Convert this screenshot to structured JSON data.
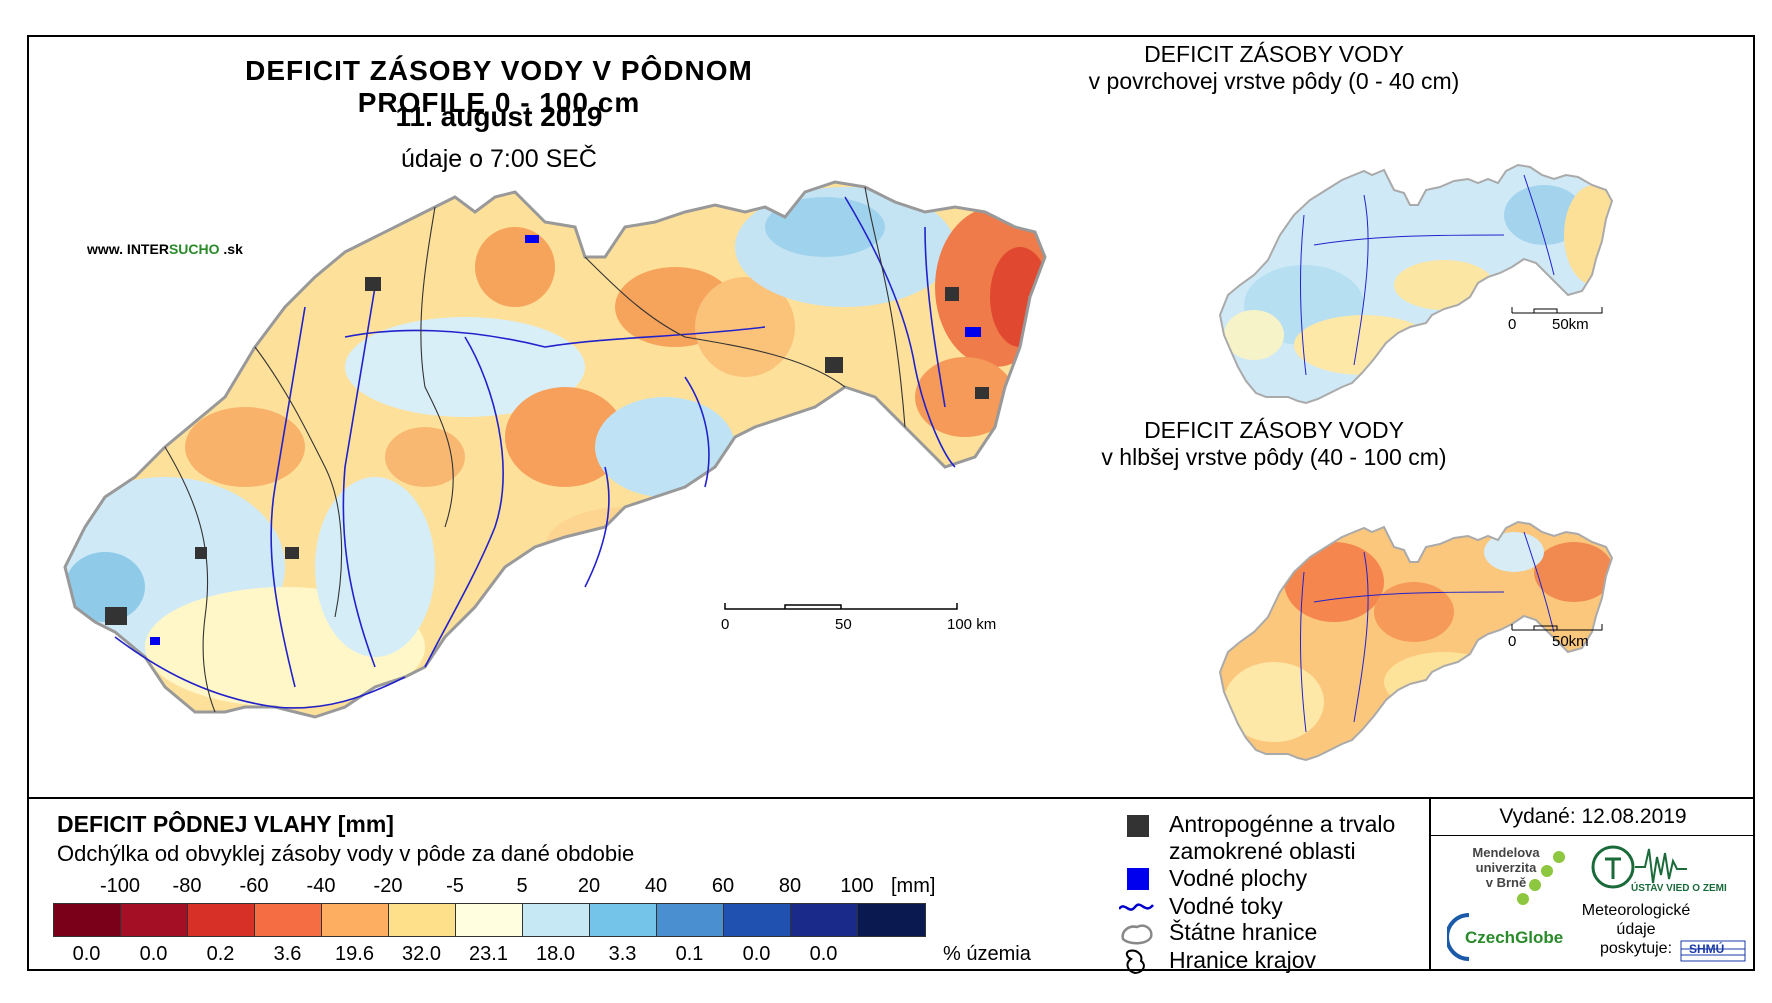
{
  "main_map": {
    "title": "DEFICIT ZÁSOBY VODY V PÔDNOM PROFILE 0 - 100 cm",
    "date": "11. august 2019",
    "time_note": "údaje o 7:00 SEČ",
    "source_prefix": "www. INTER",
    "source_brand": "SUCHO",
    "source_suffix": " .sk",
    "scale": {
      "labels": [
        "0",
        "50",
        "100 km"
      ]
    }
  },
  "inset_top": {
    "title_line1": "DEFICIT ZÁSOBY VODY",
    "title_line2": "v povrchovej vrstve pôdy (0 - 40 cm)",
    "scale": {
      "labels": [
        "0",
        "50km"
      ]
    }
  },
  "inset_bottom": {
    "title_line1": "DEFICIT ZÁSOBY VODY",
    "title_line2": "v hlbšej vrstve pôdy (40 - 100 cm)",
    "scale": {
      "labels": [
        "0",
        "50km"
      ]
    }
  },
  "legend": {
    "title": "DEFICIT PÔDNEJ VLAHY [mm]",
    "subtitle": "Odchýlka od obvyklej zásoby vody v pôde za dané obdobie",
    "thresholds": [
      "-100",
      "-80",
      "-60",
      "-40",
      "-20",
      "-5",
      "5",
      "20",
      "40",
      "60",
      "80",
      "100"
    ],
    "unit": "[mm]",
    "colors": [
      "#7a0019",
      "#a50f26",
      "#d73027",
      "#f46d43",
      "#fdae61",
      "#fee08b",
      "#ffffe0",
      "#c6e8f5",
      "#74c3e8",
      "#4a90d0",
      "#2050b0",
      "#1a2a8a",
      "#0a1a50"
    ],
    "percentages": [
      "0.0",
      "0.0",
      "0.2",
      "3.6",
      "19.6",
      "32.0",
      "23.1",
      "18.0",
      "3.3",
      "0.1",
      "0.0",
      "0.0",
      ""
    ],
    "percent_unit": "% územia"
  },
  "map_key": {
    "items": [
      {
        "label_line1": "Antropogénne a trvalo",
        "label_line2": "zamokrené oblasti",
        "icon": "dark-square-icon"
      },
      {
        "label_line1": "Vodné plochy",
        "icon": "blue-square-icon"
      },
      {
        "label_line1": "Vodné toky",
        "icon": "wavy-line-icon"
      },
      {
        "label_line1": "Štátne hranice",
        "icon": "country-outline-icon"
      },
      {
        "label_line1": "Hranice krajov",
        "icon": "region-outline-icon"
      }
    ]
  },
  "issued": {
    "text": "Vydané: 12.08.2019"
  },
  "logos": {
    "mendel": {
      "line1": "Mendelova",
      "line2": "univerzita",
      "line3": "v Brně"
    },
    "uvoz": {
      "text": "ÚSTAV VIED O ZEMI"
    },
    "czechglobe": {
      "text": "CzechGlobe"
    },
    "meteo": {
      "line1": "Meteorologické",
      "line2": "údaje",
      "line3": "poskytuje:"
    },
    "shmu": {
      "text": "SHMÚ"
    }
  }
}
